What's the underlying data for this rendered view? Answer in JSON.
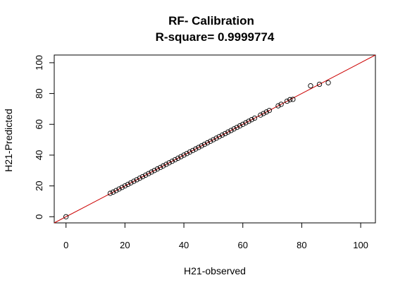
{
  "chart_data": {
    "type": "scatter",
    "title": "RF- Calibration",
    "subtitle": "R-square= 0.9999774",
    "xlabel": "H21-observed",
    "ylabel": "H21-Predicted",
    "xlim": [
      -4,
      105
    ],
    "ylim": [
      -4,
      105
    ],
    "xticks": [
      0,
      20,
      40,
      60,
      80,
      100
    ],
    "yticks": [
      0,
      20,
      40,
      60,
      80,
      100
    ],
    "xtick_labels": [
      "0",
      "20",
      "40",
      "60",
      "80",
      "100"
    ],
    "ytick_labels": [
      "0",
      "20",
      "40",
      "60",
      "80",
      "100"
    ],
    "grid": false,
    "reference_line": {
      "intercept": 0,
      "slope": 1,
      "color": "#cc0000"
    },
    "point_color": "#000000",
    "points": [
      [
        0,
        0
      ],
      [
        15,
        15.2
      ],
      [
        16,
        16
      ],
      [
        17,
        17
      ],
      [
        18,
        18
      ],
      [
        19,
        19
      ],
      [
        20,
        20
      ],
      [
        21,
        21
      ],
      [
        22,
        22
      ],
      [
        23,
        23
      ],
      [
        24,
        24
      ],
      [
        25,
        25
      ],
      [
        26,
        26
      ],
      [
        27,
        27
      ],
      [
        28,
        28
      ],
      [
        29,
        29
      ],
      [
        30,
        30
      ],
      [
        31,
        31
      ],
      [
        32,
        32
      ],
      [
        33,
        33
      ],
      [
        34,
        34
      ],
      [
        35,
        35
      ],
      [
        36,
        36
      ],
      [
        37,
        37
      ],
      [
        38,
        38
      ],
      [
        39,
        39
      ],
      [
        40,
        40
      ],
      [
        41,
        41
      ],
      [
        42,
        42
      ],
      [
        43,
        43
      ],
      [
        44,
        44
      ],
      [
        45,
        45
      ],
      [
        46,
        46
      ],
      [
        47,
        47
      ],
      [
        48,
        48
      ],
      [
        49,
        49
      ],
      [
        50,
        50
      ],
      [
        51,
        51
      ],
      [
        52,
        52
      ],
      [
        53,
        53
      ],
      [
        54,
        54
      ],
      [
        55,
        55
      ],
      [
        56,
        56
      ],
      [
        57,
        57
      ],
      [
        58,
        58
      ],
      [
        59,
        59
      ],
      [
        60,
        60
      ],
      [
        61,
        61
      ],
      [
        62,
        62
      ],
      [
        63,
        63
      ],
      [
        64,
        64
      ],
      [
        66,
        66
      ],
      [
        67,
        67
      ],
      [
        68,
        68
      ],
      [
        69,
        69
      ],
      [
        72,
        72
      ],
      [
        73,
        73
      ],
      [
        75,
        75
      ],
      [
        76,
        76
      ],
      [
        77,
        76.2
      ],
      [
        83,
        85
      ],
      [
        86,
        86
      ],
      [
        89,
        87
      ]
    ]
  }
}
